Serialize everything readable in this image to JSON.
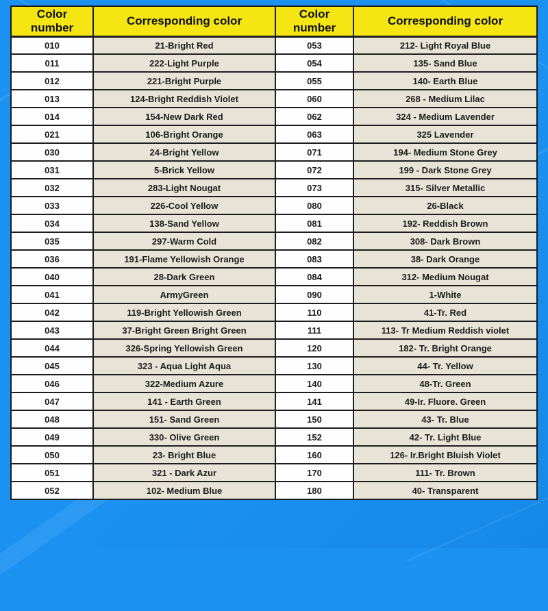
{
  "theme": {
    "background_blue": "#1b92f2",
    "header_yellow": "#f4e513",
    "number_cell_white": "#fefefe",
    "color_cell_beige": "#e7e4d7",
    "border_dark": "#1d1d1d",
    "text_dark": "#1b1b1b"
  },
  "tables": [
    {
      "headers": {
        "number": "Color number",
        "color": "Corresponding color"
      },
      "rows": [
        {
          "number": "010",
          "color": "21-Bright Red"
        },
        {
          "number": "011",
          "color": "222-Light Purple"
        },
        {
          "number": "012",
          "color": "221-Bright Purple"
        },
        {
          "number": "013",
          "color": "124-Bright Reddish Violet"
        },
        {
          "number": "014",
          "color": "154-New Dark Red"
        },
        {
          "number": "021",
          "color": "106-Bright Orange"
        },
        {
          "number": "030",
          "color": "24-Bright Yellow"
        },
        {
          "number": "031",
          "color": "5-Brick Yellow"
        },
        {
          "number": "032",
          "color": "283-Light Nougat"
        },
        {
          "number": "033",
          "color": "226-Cool Yellow"
        },
        {
          "number": "034",
          "color": "138-Sand Yellow"
        },
        {
          "number": "035",
          "color": "297-Warm Cold"
        },
        {
          "number": "036",
          "color": "191-Flame Yellowish Orange"
        },
        {
          "number": "040",
          "color": "28-Dark Green"
        },
        {
          "number": "041",
          "color": "ArmyGreen"
        },
        {
          "number": "042",
          "color": "119-Bright Yellowish Green"
        },
        {
          "number": "043",
          "color": "37-Bright Green Bright Green"
        },
        {
          "number": "044",
          "color": "326-Spring Yellowish Green"
        },
        {
          "number": "045",
          "color": "323 - Aqua Light Aqua"
        },
        {
          "number": "046",
          "color": "322-Medium Azure"
        },
        {
          "number": "047",
          "color": "141 - Earth Green"
        },
        {
          "number": "048",
          "color": "151- Sand Green"
        },
        {
          "number": "049",
          "color": "330- Olive Green"
        },
        {
          "number": "050",
          "color": "23- Bright Blue"
        },
        {
          "number": "051",
          "color": "321 - Dark Azur"
        },
        {
          "number": "052",
          "color": "102- Medium Blue"
        }
      ]
    },
    {
      "headers": {
        "number": "Color number",
        "color": "Corresponding color"
      },
      "rows": [
        {
          "number": "053",
          "color": "212- Light Royal Blue"
        },
        {
          "number": "054",
          "color": "135- Sand Blue"
        },
        {
          "number": "055",
          "color": "140- Earth Blue"
        },
        {
          "number": "060",
          "color": "268 - Medium Lilac"
        },
        {
          "number": "062",
          "color": "324 - Medium Lavender"
        },
        {
          "number": "063",
          "color": "325 Lavender"
        },
        {
          "number": "071",
          "color": "194- Medium Stone Grey"
        },
        {
          "number": "072",
          "color": "199 - Dark Stone Grey"
        },
        {
          "number": "073",
          "color": "315- Silver Metallic"
        },
        {
          "number": "080",
          "color": "26-Black"
        },
        {
          "number": "081",
          "color": "192- Reddish Brown"
        },
        {
          "number": "082",
          "color": "308- Dark Brown"
        },
        {
          "number": "083",
          "color": "38- Dark Orange"
        },
        {
          "number": "084",
          "color": "312- Medium Nougat"
        },
        {
          "number": "090",
          "color": "1-White"
        },
        {
          "number": "110",
          "color": "41-Tr. Red"
        },
        {
          "number": "111",
          "color": "113- Tr Medium Reddish violet"
        },
        {
          "number": "120",
          "color": "182- Tr. Bright Orange"
        },
        {
          "number": "130",
          "color": "44- Tr. Yellow"
        },
        {
          "number": "140",
          "color": "48-Tr. Green"
        },
        {
          "number": "141",
          "color": "49-Ir. Fluore. Green"
        },
        {
          "number": "150",
          "color": "43- Tr. Blue"
        },
        {
          "number": "152",
          "color": "42- Tr. Light Blue"
        },
        {
          "number": "160",
          "color": "126- Ir.Bright Bluish Violet"
        },
        {
          "number": "170",
          "color": "111- Tr. Brown"
        },
        {
          "number": "180",
          "color": "40- Transparent"
        }
      ]
    }
  ]
}
